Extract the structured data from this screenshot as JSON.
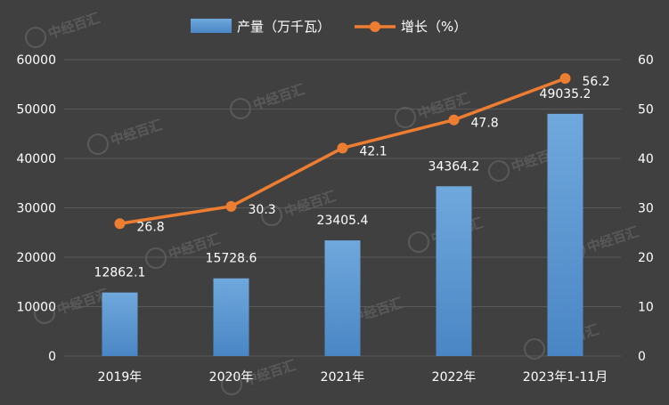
{
  "chart_data": {
    "type": "bar",
    "categories": [
      "2019年",
      "2020年",
      "2021年",
      "2022年",
      "2023年1-11月"
    ],
    "series": [
      {
        "name": "产量（万千瓦）",
        "type": "bar",
        "axis": "left",
        "values": [
          12862.1,
          15728.6,
          23405.4,
          34364.2,
          49035.2
        ],
        "labels": [
          "12862.1",
          "15728.6",
          "23405.4",
          "34364.2",
          "49035.2"
        ]
      },
      {
        "name": "增长（%）",
        "type": "line",
        "axis": "right",
        "values": [
          26.8,
          30.3,
          42.1,
          47.8,
          56.2
        ],
        "labels": [
          "26.8",
          "30.3",
          "42.1",
          "47.8",
          "56.2"
        ]
      }
    ],
    "y_left": {
      "min": 0,
      "max": 60000,
      "ticks": [
        "0",
        "10000",
        "20000",
        "30000",
        "40000",
        "50000",
        "60000"
      ]
    },
    "y_right": {
      "min": 0,
      "max": 60,
      "ticks": [
        "0",
        "10",
        "20",
        "30",
        "40",
        "50",
        "60"
      ]
    },
    "grid": true,
    "legend_position": "top-center",
    "colors": {
      "background": "#404040",
      "bar": "#5b9bd5",
      "line": "#ed7d31",
      "text": "#ffffff",
      "grid": "#5a5a5a"
    }
  },
  "watermark": "中经百汇"
}
